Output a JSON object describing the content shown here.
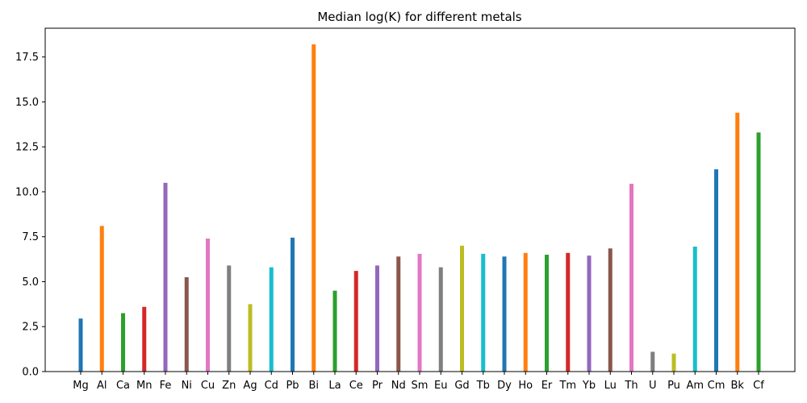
{
  "chart_data": {
    "type": "bar",
    "title": "Median log(K) for different metals",
    "xlabel": "",
    "ylabel": "",
    "ylim": [
      0,
      19.1
    ],
    "yticks": [
      "0.0",
      "2.5",
      "5.0",
      "7.5",
      "10.0",
      "12.5",
      "15.0",
      "17.5"
    ],
    "grid": false,
    "categories": [
      "Mg",
      "Al",
      "Ca",
      "Mn",
      "Fe",
      "Ni",
      "Cu",
      "Zn",
      "Ag",
      "Cd",
      "Pb",
      "Bi",
      "La",
      "Ce",
      "Pr",
      "Nd",
      "Sm",
      "Eu",
      "Gd",
      "Tb",
      "Dy",
      "Ho",
      "Er",
      "Tm",
      "Yb",
      "Lu",
      "Th",
      "U",
      "Pu",
      "Am",
      "Cm",
      "Bk",
      "Cf"
    ],
    "values": [
      2.95,
      8.1,
      3.25,
      3.6,
      10.5,
      5.25,
      7.4,
      5.9,
      3.75,
      5.8,
      7.45,
      18.2,
      4.5,
      5.6,
      5.9,
      6.4,
      6.55,
      5.8,
      7.0,
      6.55,
      6.4,
      6.6,
      6.5,
      6.6,
      6.45,
      6.85,
      10.45,
      1.1,
      1.0,
      6.95,
      11.25,
      14.4,
      13.3
    ],
    "colors": [
      "#1f77b4",
      "#ff7f0e",
      "#2ca02c",
      "#d62728",
      "#9467bd",
      "#8c564b",
      "#e377c2",
      "#7f7f7f",
      "#bcbd22",
      "#17becf"
    ]
  }
}
